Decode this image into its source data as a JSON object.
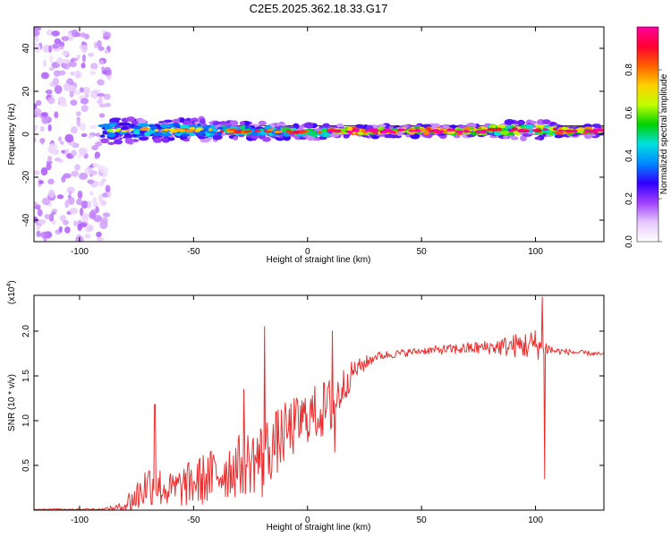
{
  "page_title": "C2E5.2025.362.18.33.G17",
  "chart_data": [
    {
      "type": "heatmap",
      "title": "C2E5.2025.362.18.33.G17",
      "xlabel": "Height of straight line (km)",
      "ylabel": "Frequency (Hz)",
      "xlim": [
        -120,
        130
      ],
      "ylim": [
        -50,
        50
      ],
      "x_ticks": [
        -100,
        -50,
        0,
        50,
        100
      ],
      "y_ticks": [
        -40,
        -20,
        0,
        20,
        40
      ],
      "colorbar": {
        "label": "Normalized spectral amplitude",
        "range": [
          0,
          1
        ],
        "ticks": [
          "0.0",
          "0.2",
          "0.4",
          "0.6",
          "0.8"
        ],
        "tick_values": [
          0.0,
          0.2,
          0.4,
          0.6,
          0.8
        ],
        "colormap": [
          "#ffffff",
          "#e6c8ff",
          "#a040ff",
          "#3000ff",
          "#0088ff",
          "#00e0e0",
          "#00d000",
          "#c0ff00",
          "#ffd000",
          "#ff6000",
          "#ff0030",
          "#ff00a0"
        ]
      },
      "noise_region_km": [
        -120,
        -90
      ],
      "signal_band": [
        {
          "x_start": -90,
          "x_end": -75,
          "f_center": 2,
          "f_halfwidth": 5,
          "amplitude": 0.35
        },
        {
          "x_start": -75,
          "x_end": -40,
          "f_center": 2,
          "f_halfwidth": 4,
          "amplitude": 0.4
        },
        {
          "x_start": -40,
          "x_end": -10,
          "f_center": 1.5,
          "f_halfwidth": 3,
          "amplitude": 0.45
        },
        {
          "x_start": -10,
          "x_end": 10,
          "f_center": 1,
          "f_halfwidth": 2.5,
          "amplitude": 0.55
        },
        {
          "x_start": 10,
          "x_end": 80,
          "f_center": 1.5,
          "f_halfwidth": 2,
          "amplitude": 0.75
        },
        {
          "x_start": 80,
          "x_end": 110,
          "f_center": 2,
          "f_halfwidth": 3,
          "amplitude": 0.6
        },
        {
          "x_start": 110,
          "x_end": 130,
          "f_center": 1.5,
          "f_halfwidth": 2,
          "amplitude": 0.75
        }
      ],
      "reference_lines_hz": [
        0,
        4
      ]
    },
    {
      "type": "line",
      "xlabel": "Height of straight line (km)",
      "ylabel": "SNR (10 * v/v)",
      "multiplier_label": "(x10",
      "multiplier_exponent": "4",
      "multiplier_close": ")",
      "xlim": [
        -120,
        130
      ],
      "ylim": [
        0,
        2.4
      ],
      "x_ticks": [
        -100,
        -50,
        0,
        50,
        100
      ],
      "y_ticks": [
        0.5,
        1.0,
        1.5,
        2.0
      ],
      "y_tick_labels": [
        "0.5",
        "1.0",
        "1.5",
        "2.0"
      ],
      "color": "#e83030",
      "envelope": [
        {
          "x": -120,
          "base": 0.01,
          "amp": 0.005
        },
        {
          "x": -90,
          "base": 0.01,
          "amp": 0.01
        },
        {
          "x": -82,
          "base": 0.03,
          "amp": 0.05
        },
        {
          "x": -75,
          "base": 0.15,
          "amp": 0.2
        },
        {
          "x": -70,
          "base": 0.3,
          "amp": 0.25
        },
        {
          "x": -60,
          "base": 0.22,
          "amp": 0.2
        },
        {
          "x": -45,
          "base": 0.35,
          "amp": 0.3
        },
        {
          "x": -30,
          "base": 0.5,
          "amp": 0.35
        },
        {
          "x": -20,
          "base": 0.6,
          "amp": 0.4
        },
        {
          "x": -10,
          "base": 0.85,
          "amp": 0.35
        },
        {
          "x": 0,
          "base": 1.05,
          "amp": 0.3
        },
        {
          "x": 10,
          "base": 1.15,
          "amp": 0.35
        },
        {
          "x": 20,
          "base": 1.55,
          "amp": 0.12
        },
        {
          "x": 30,
          "base": 1.72,
          "amp": 0.05
        },
        {
          "x": 50,
          "base": 1.78,
          "amp": 0.04
        },
        {
          "x": 80,
          "base": 1.82,
          "amp": 0.08
        },
        {
          "x": 100,
          "base": 1.85,
          "amp": 0.18
        },
        {
          "x": 108,
          "base": 1.78,
          "amp": 0.04
        },
        {
          "x": 130,
          "base": 1.74,
          "amp": 0.02
        }
      ],
      "spikes": [
        {
          "x": -67,
          "y": 1.18
        },
        {
          "x": -69,
          "y": 0.2
        },
        {
          "x": -28,
          "y": 1.35
        },
        {
          "x": -19,
          "y": 2.05
        },
        {
          "x": -20,
          "y": 0.15
        },
        {
          "x": 11,
          "y": 2.0
        },
        {
          "x": 12,
          "y": 0.65
        },
        {
          "x": 103,
          "y": 2.38
        },
        {
          "x": 104,
          "y": 0.35
        }
      ]
    }
  ]
}
